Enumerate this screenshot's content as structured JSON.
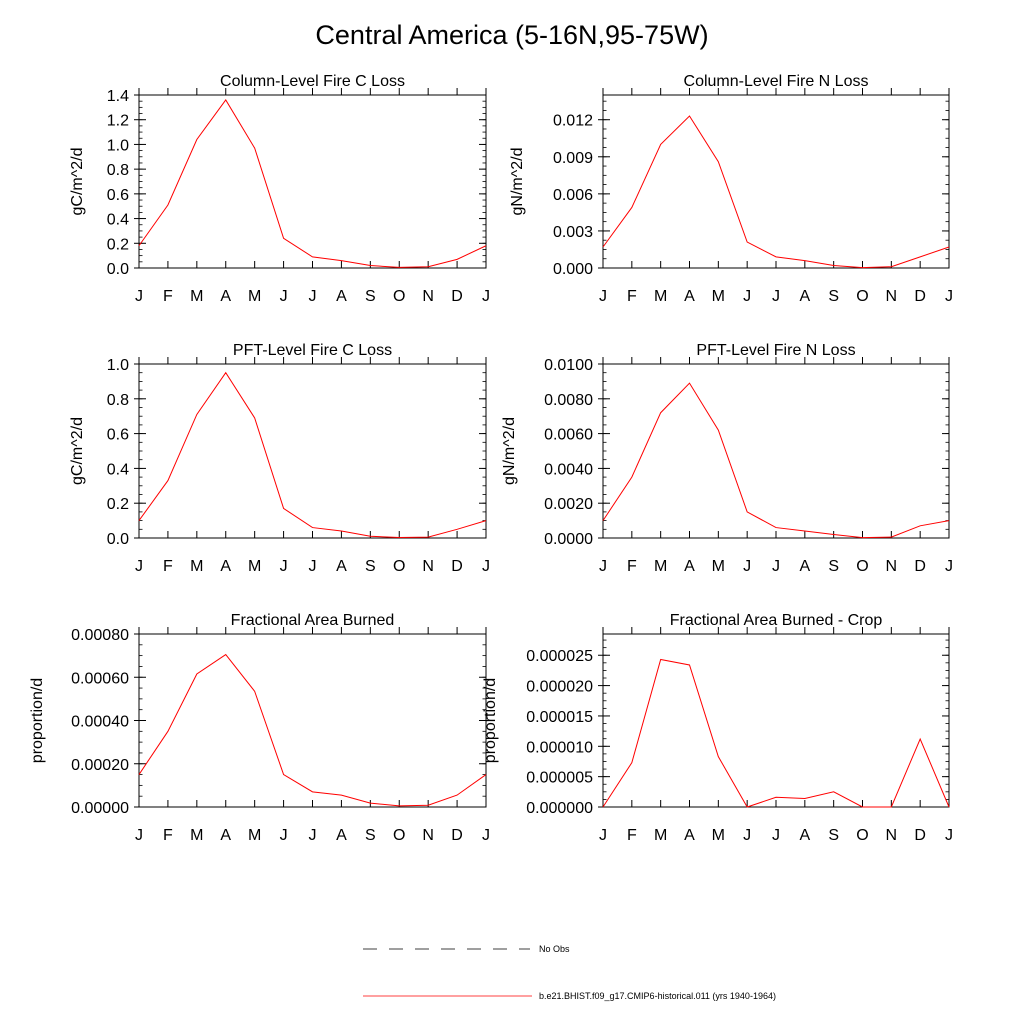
{
  "page": {
    "title": "Central America (5-16N,95-75W)"
  },
  "legend": {
    "items": [
      {
        "label": "No Obs",
        "color": "#000000",
        "style": "dashed"
      },
      {
        "label": "b.e21.BHIST.f09_g17.CMIP6-historical.011 (yrs 1940-1964)",
        "color": "#ff0000",
        "style": "solid"
      }
    ]
  },
  "chart_data": [
    {
      "type": "line",
      "title": "Column-Level Fire C Loss",
      "ylabel": "gC/m^2/d",
      "xlabel": "",
      "categories": [
        "J",
        "F",
        "M",
        "A",
        "M",
        "J",
        "J",
        "A",
        "S",
        "O",
        "N",
        "D",
        "J"
      ],
      "ylim": [
        0,
        1.4
      ],
      "yticks": [
        "0.0",
        "0.2",
        "0.4",
        "0.6",
        "0.8",
        "1.0",
        "1.2",
        "1.4"
      ],
      "yticks_values": [
        0,
        0.2,
        0.4,
        0.6,
        0.8,
        1.0,
        1.2,
        1.4
      ],
      "series": [
        {
          "name": "b.e21.BHIST.f09_g17.CMIP6-historical.011 (yrs 1940-1964)",
          "color": "#ff0000",
          "values": [
            0.18,
            0.51,
            1.04,
            1.36,
            0.97,
            0.24,
            0.09,
            0.06,
            0.02,
            0.005,
            0.01,
            0.07,
            0.18
          ]
        }
      ]
    },
    {
      "type": "line",
      "title": "Column-Level Fire N Loss",
      "ylabel": "gN/m^2/d",
      "xlabel": "",
      "categories": [
        "J",
        "F",
        "M",
        "A",
        "M",
        "J",
        "J",
        "A",
        "S",
        "O",
        "N",
        "D",
        "J"
      ],
      "ylim": [
        0,
        0.014
      ],
      "yticks": [
        "0.000",
        "0.003",
        "0.006",
        "0.009",
        "0.012"
      ],
      "yticks_values": [
        0,
        0.003,
        0.006,
        0.009,
        0.012
      ],
      "series": [
        {
          "name": "b.e21.BHIST.f09_g17.CMIP6-historical.011 (yrs 1940-1964)",
          "color": "#ff0000",
          "values": [
            0.0017,
            0.0049,
            0.01,
            0.0123,
            0.0086,
            0.0021,
            0.0009,
            0.0006,
            0.0002,
            3e-05,
            0.0001,
            0.0009,
            0.0017
          ]
        }
      ]
    },
    {
      "type": "line",
      "title": "PFT-Level Fire C Loss",
      "ylabel": "gC/m^2/d",
      "xlabel": "",
      "categories": [
        "J",
        "F",
        "M",
        "A",
        "M",
        "J",
        "J",
        "A",
        "S",
        "O",
        "N",
        "D",
        "J"
      ],
      "ylim": [
        0,
        1.0
      ],
      "yticks": [
        "0.0",
        "0.2",
        "0.4",
        "0.6",
        "0.8",
        "1.0"
      ],
      "yticks_values": [
        0,
        0.2,
        0.4,
        0.6,
        0.8,
        1.0
      ],
      "series": [
        {
          "name": "b.e21.BHIST.f09_g17.CMIP6-historical.011 (yrs 1940-1964)",
          "color": "#ff0000",
          "values": [
            0.1,
            0.33,
            0.71,
            0.95,
            0.69,
            0.17,
            0.06,
            0.04,
            0.01,
            0.003,
            0.005,
            0.05,
            0.1
          ]
        }
      ]
    },
    {
      "type": "line",
      "title": "PFT-Level Fire N Loss",
      "ylabel": "gN/m^2/d",
      "xlabel": "",
      "categories": [
        "J",
        "F",
        "M",
        "A",
        "M",
        "J",
        "J",
        "A",
        "S",
        "O",
        "N",
        "D",
        "J"
      ],
      "ylim": [
        0,
        0.01
      ],
      "yticks": [
        "0.0000",
        "0.0020",
        "0.0040",
        "0.0060",
        "0.0080",
        "0.0100"
      ],
      "yticks_values": [
        0,
        0.002,
        0.004,
        0.006,
        0.008,
        0.01
      ],
      "series": [
        {
          "name": "b.e21.BHIST.f09_g17.CMIP6-historical.011 (yrs 1940-1964)",
          "color": "#ff0000",
          "values": [
            0.001,
            0.0035,
            0.0072,
            0.0089,
            0.0062,
            0.0015,
            0.0006,
            0.0004,
            0.0002,
            2e-05,
            5e-05,
            0.0007,
            0.001
          ]
        }
      ]
    },
    {
      "type": "line",
      "title": "Fractional Area Burned",
      "ylabel": "proportion/d",
      "xlabel": "",
      "categories": [
        "J",
        "F",
        "M",
        "A",
        "M",
        "J",
        "J",
        "A",
        "S",
        "O",
        "N",
        "D",
        "J"
      ],
      "ylim": [
        0,
        0.0008
      ],
      "yticks": [
        "0.00000",
        "0.00020",
        "0.00040",
        "0.00060",
        "0.00080"
      ],
      "yticks_values": [
        0,
        0.0002,
        0.0004,
        0.0006,
        0.0008
      ],
      "series": [
        {
          "name": "b.e21.BHIST.f09_g17.CMIP6-historical.011 (yrs 1940-1964)",
          "color": "#ff0000",
          "values": [
            0.00015,
            0.00035,
            0.000615,
            0.000705,
            0.000535,
            0.00015,
            7e-05,
            5.5e-05,
            1.8e-05,
            5e-06,
            8e-06,
            5.5e-05,
            0.00015
          ]
        }
      ]
    },
    {
      "type": "line",
      "title": "Fractional Area Burned - Crop",
      "ylabel": "proportion/d",
      "xlabel": "",
      "categories": [
        "J",
        "F",
        "M",
        "A",
        "M",
        "J",
        "J",
        "A",
        "S",
        "O",
        "N",
        "D",
        "J"
      ],
      "ylim": [
        0,
        2.85e-05
      ],
      "yticks": [
        "0.000000",
        "0.000005",
        "0.000010",
        "0.000015",
        "0.000020",
        "0.000025"
      ],
      "yticks_values": [
        0,
        5e-06,
        1e-05,
        1.5e-05,
        2e-05,
        2.5e-05
      ],
      "series": [
        {
          "name": "b.e21.BHIST.f09_g17.CMIP6-historical.011 (yrs 1940-1964)",
          "color": "#ff0000",
          "values": [
            0,
            7.3e-06,
            2.43e-05,
            2.34e-05,
            8.3e-06,
            0,
            1.6e-06,
            1.4e-06,
            2.5e-06,
            0,
            0,
            1.12e-05,
            0
          ]
        }
      ]
    }
  ]
}
